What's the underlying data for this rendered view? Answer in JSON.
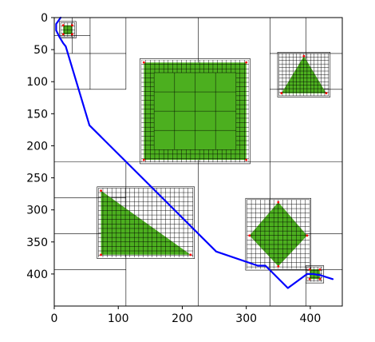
{
  "chart_data": {
    "type": "path-planning-quadtree",
    "title": "",
    "xlabel": "",
    "ylabel": "",
    "xlim": [
      0,
      450
    ],
    "ylim": [
      450,
      0
    ],
    "xticks": [
      0,
      100,
      200,
      300,
      400
    ],
    "yticks": [
      0,
      50,
      100,
      150,
      200,
      250,
      300,
      350,
      400
    ],
    "grid": false,
    "colors": {
      "obstacle_fill": "#4caf1f",
      "cell_edges": "#000000",
      "path": "#0000ff",
      "corner_markers": "#ff0000"
    },
    "obstacles": [
      {
        "shape": "square",
        "corners": [
          [
            14,
            12
          ],
          [
            28,
            12
          ],
          [
            28,
            26
          ],
          [
            14,
            26
          ]
        ]
      },
      {
        "shape": "square",
        "corners": [
          [
            140,
            70
          ],
          [
            300,
            70
          ],
          [
            300,
            222
          ],
          [
            140,
            222
          ]
        ]
      },
      {
        "shape": "triangle",
        "corners": [
          [
            390,
            60
          ],
          [
            355,
            118
          ],
          [
            425,
            118
          ]
        ]
      },
      {
        "shape": "triangle",
        "corners": [
          [
            73,
            270
          ],
          [
            73,
            370
          ],
          [
            213,
            370
          ]
        ]
      },
      {
        "shape": "diamond",
        "corners": [
          [
            350,
            288
          ],
          [
            395,
            340
          ],
          [
            350,
            388
          ],
          [
            305,
            340
          ]
        ]
      },
      {
        "shape": "square",
        "corners": [
          [
            399,
            393
          ],
          [
            415,
            393
          ],
          [
            415,
            408
          ],
          [
            399,
            408
          ]
        ]
      }
    ],
    "path": [
      [
        10,
        0
      ],
      [
        3,
        10
      ],
      [
        3,
        20
      ],
      [
        8,
        30
      ],
      [
        14,
        40
      ],
      [
        18,
        45
      ],
      [
        55,
        168
      ],
      [
        253,
        365
      ],
      [
        318,
        387
      ],
      [
        330,
        387
      ],
      [
        343,
        400
      ],
      [
        365,
        422
      ],
      [
        395,
        400
      ],
      [
        405,
        400
      ],
      [
        416,
        402
      ],
      [
        435,
        408
      ]
    ],
    "coarse_grid": {
      "vertical": [
        {
          "x": 28,
          "y": [
            0,
            56
          ]
        },
        {
          "x": 56,
          "y": [
            0,
            112
          ]
        },
        {
          "x": 112,
          "y": [
            0,
            112
          ]
        },
        {
          "x": 112,
          "y": [
            225,
            450
          ]
        },
        {
          "x": 225,
          "y": [
            0,
            225
          ]
        },
        {
          "x": 225,
          "y": [
            225,
            450
          ]
        },
        {
          "x": 337,
          "y": [
            0,
            225
          ]
        },
        {
          "x": 337,
          "y": [
            225,
            450
          ]
        },
        {
          "x": 393,
          "y": [
            0,
            112
          ]
        },
        {
          "x": 393,
          "y": [
            393,
            450
          ]
        }
      ],
      "horizontal": [
        {
          "y": 28,
          "x": [
            0,
            56
          ]
        },
        {
          "y": 56,
          "x": [
            0,
            112
          ]
        },
        {
          "y": 56,
          "x": [
            337,
            450
          ]
        },
        {
          "y": 112,
          "x": [
            0,
            112
          ]
        },
        {
          "y": 112,
          "x": [
            337,
            450
          ]
        },
        {
          "y": 225,
          "x": [
            0,
            450
          ]
        },
        {
          "y": 281,
          "x": [
            0,
            112
          ]
        },
        {
          "y": 337,
          "x": [
            0,
            112
          ]
        },
        {
          "y": 337,
          "x": [
            337,
            450
          ]
        },
        {
          "y": 393,
          "x": [
            0,
            112
          ]
        },
        {
          "y": 393,
          "x": [
            337,
            450
          ]
        }
      ]
    }
  }
}
